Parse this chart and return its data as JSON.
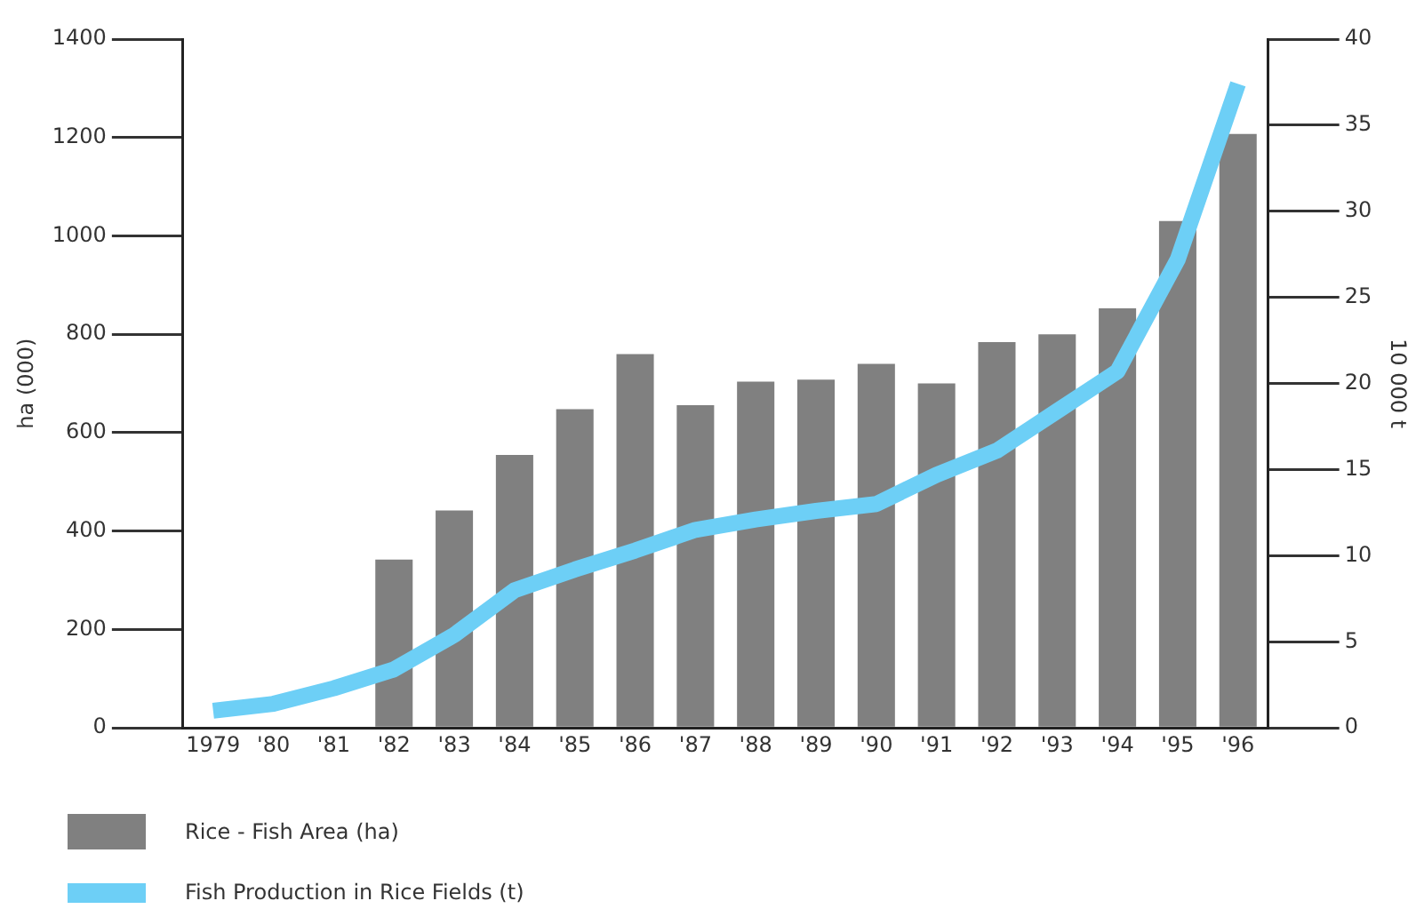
{
  "chart_data": {
    "type": "bar",
    "ylabel": "ha (000)",
    "y2label": "10 000 t",
    "legend": "bottom left",
    "grid": false,
    "categories": [
      "1979",
      "'80",
      "'81",
      "'82",
      "'83",
      "'84",
      "'85",
      "'86",
      "'87",
      "'88",
      "'89",
      "'90",
      "'91",
      "'92",
      "'93",
      "'94",
      "'95",
      "'96"
    ],
    "ylim": [
      0,
      1400
    ],
    "yticks": [
      0,
      200,
      400,
      600,
      800,
      1000,
      1200,
      1400
    ],
    "y2lim": [
      0,
      40
    ],
    "y2ticks": [
      0,
      5,
      10,
      15,
      20,
      25,
      30,
      35,
      40
    ],
    "series": [
      {
        "name": "Rice - Fish Area (ha)",
        "color": "#808080",
        "values": [
          null,
          null,
          null,
          342,
          442,
          555,
          648,
          760,
          656,
          704,
          708,
          740,
          700,
          784,
          800,
          853,
          1030,
          1207
        ]
      },
      {
        "name": "Fish Production in Rice Fields (t)",
        "type": "line",
        "axis": "y2",
        "color": "#6dcff6",
        "values": [
          1.0,
          1.4,
          2.3,
          3.4,
          5.4,
          8.0,
          9.2,
          10.3,
          11.5,
          12.1,
          12.6,
          13.0,
          14.7,
          16.1,
          18.4,
          20.7,
          27.2,
          37.4
        ]
      }
    ]
  }
}
